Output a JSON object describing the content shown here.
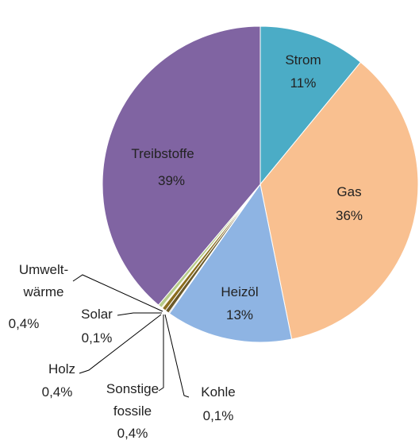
{
  "chart_data": {
    "type": "pie",
    "categories": [
      "Strom",
      "Gas",
      "Heizöl",
      "Kohle",
      "Sonstige\nfossile",
      "Holz",
      "Solar",
      "Umwelt-\nwärme",
      "Treibstoffe"
    ],
    "values": [
      11,
      36,
      13,
      0.1,
      0.4,
      0.4,
      0.1,
      0.4,
      39
    ],
    "value_labels": [
      "11%",
      "36%",
      "13%",
      "0,1%",
      "0,4%",
      "0,4%",
      "0,1%",
      "0,4%",
      "39%"
    ],
    "colors": [
      "#4bacc6",
      "#f9c090",
      "#8eb4e3",
      "#7f7f7f",
      "#6b5a2a",
      "#8b6d1e",
      "#f0b400",
      "#b8cc8a",
      "#8064a2"
    ]
  }
}
